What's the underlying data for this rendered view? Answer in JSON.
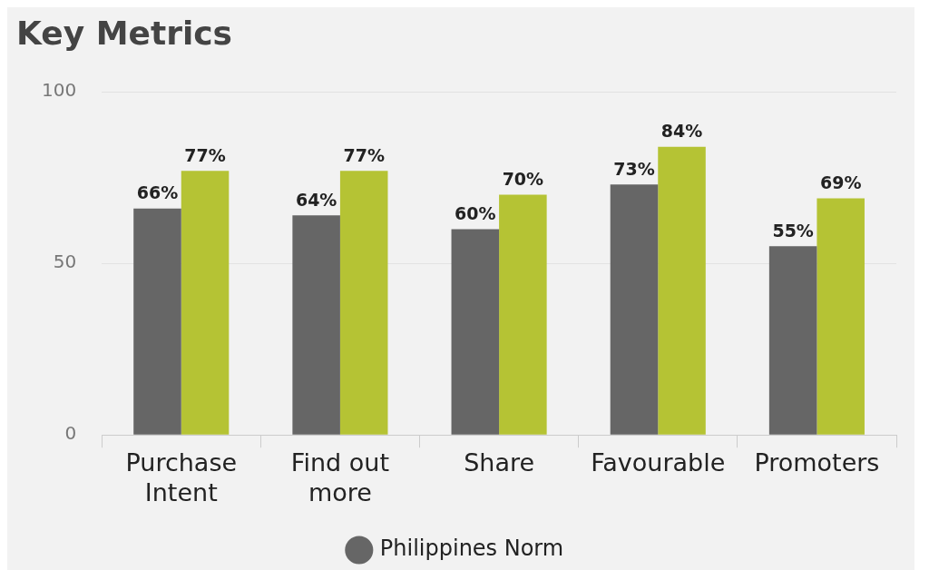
{
  "chart_data": {
    "type": "bar",
    "title": "Key Metrics",
    "categories": [
      "Purchase Intent",
      "Find out more",
      "Share",
      "Favourable",
      "Promoters"
    ],
    "series": [
      {
        "name": "Philippines Norm",
        "color": "#666666",
        "values": [
          66,
          64,
          60,
          73,
          55
        ],
        "value_labels": [
          "66%",
          "64%",
          "60%",
          "73%",
          "55%"
        ]
      },
      {
        "color": "#b5c334",
        "values": [
          77,
          77,
          70,
          84,
          69
        ],
        "value_labels": [
          "77%",
          "77%",
          "70%",
          "84%",
          "69%"
        ]
      }
    ],
    "ylim": [
      0,
      100
    ],
    "yticks": [
      0,
      50,
      100
    ],
    "grid": "y",
    "legend": "bottom"
  }
}
